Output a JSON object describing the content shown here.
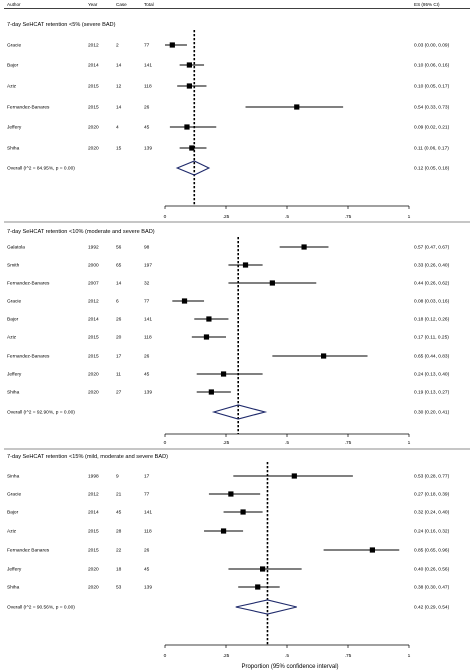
{
  "header": {
    "author": "Author",
    "year": "Year",
    "case": "Case",
    "total": "Total",
    "es": "ES (95% CI)"
  },
  "x_axis_label": "Proportion (95% confidence interval)",
  "chart_data": [
    {
      "type": "forest",
      "title": "7-day SeHCAT retention <5% (severe BAD)",
      "xlim": [
        0,
        1
      ],
      "ticks": [
        {
          "v": 0,
          "label": "0"
        },
        {
          "v": 0.25,
          "label": ".25"
        },
        {
          "v": 0.5,
          "label": ".5"
        },
        {
          "v": 0.75,
          "label": ".75"
        },
        {
          "v": 1,
          "label": "1"
        }
      ],
      "reference_line": 0.12,
      "studies": [
        {
          "author": "Gracie",
          "year": "2012",
          "case": "2",
          "total": "77",
          "es": 0.03,
          "lo": 0.0,
          "hi": 0.09,
          "es_text": "0.03 (0.00, 0.09)"
        },
        {
          "author": "Bajor",
          "year": "2014",
          "case": "14",
          "total": "141",
          "es": 0.1,
          "lo": 0.06,
          "hi": 0.16,
          "es_text": "0.10 (0.06, 0.16)"
        },
        {
          "author": "Aziz",
          "year": "2015",
          "case": "12",
          "total": "118",
          "es": 0.1,
          "lo": 0.05,
          "hi": 0.17,
          "es_text": "0.10 (0.05, 0.17)"
        },
        {
          "author": "Fernandez-Banares",
          "year": "2015",
          "case": "14",
          "total": "26",
          "es": 0.54,
          "lo": 0.33,
          "hi": 0.73,
          "es_text": "0.54 (0.33, 0.73)"
        },
        {
          "author": "Jeffery",
          "year": "2020",
          "case": "4",
          "total": "45",
          "es": 0.09,
          "lo": 0.02,
          "hi": 0.21,
          "es_text": "0.09 (0.02, 0.21)"
        },
        {
          "author": "Shiha",
          "year": "2020",
          "case": "15",
          "total": "139",
          "es": 0.11,
          "lo": 0.06,
          "hi": 0.17,
          "es_text": "0.11 (0.06, 0.17)"
        }
      ],
      "overall": {
        "label": "Overall  (I^2 = 84.95%, p = 0.00)",
        "es": 0.12,
        "lo": 0.05,
        "hi": 0.18,
        "es_text": "0.12 (0.05, 0.18)"
      }
    },
    {
      "type": "forest",
      "title": "7-day SeHCAT retention <10% (moderate and severe BAD)",
      "xlim": [
        0,
        1
      ],
      "ticks": [
        {
          "v": 0,
          "label": "0"
        },
        {
          "v": 0.25,
          "label": ".25"
        },
        {
          "v": 0.5,
          "label": ".5"
        },
        {
          "v": 0.75,
          "label": ".75"
        },
        {
          "v": 1,
          "label": "1"
        }
      ],
      "reference_line": 0.3,
      "studies": [
        {
          "author": "Galatola",
          "year": "1992",
          "case": "56",
          "total": "98",
          "es": 0.57,
          "lo": 0.47,
          "hi": 0.67,
          "es_text": "0.57 (0.47, 0.67)"
        },
        {
          "author": "Smith",
          "year": "2000",
          "case": "65",
          "total": "197",
          "es": 0.33,
          "lo": 0.26,
          "hi": 0.4,
          "es_text": "0.33 (0.26, 0.40)"
        },
        {
          "author": "Fernandez-Banares",
          "year": "2007",
          "case": "14",
          "total": "32",
          "es": 0.44,
          "lo": 0.26,
          "hi": 0.62,
          "es_text": "0.44 (0.26, 0.62)"
        },
        {
          "author": "Gracie",
          "year": "2012",
          "case": "6",
          "total": "77",
          "es": 0.08,
          "lo": 0.03,
          "hi": 0.16,
          "es_text": "0.08 (0.03, 0.16)"
        },
        {
          "author": "Bajor",
          "year": "2014",
          "case": "26",
          "total": "141",
          "es": 0.18,
          "lo": 0.12,
          "hi": 0.26,
          "es_text": "0.18 (0.12, 0.26)"
        },
        {
          "author": "Aziz",
          "year": "2015",
          "case": "20",
          "total": "118",
          "es": 0.17,
          "lo": 0.11,
          "hi": 0.25,
          "es_text": "0.17 (0.11, 0.25)"
        },
        {
          "author": "Fernandez-Banares",
          "year": "2015",
          "case": "17",
          "total": "26",
          "es": 0.65,
          "lo": 0.44,
          "hi": 0.83,
          "es_text": "0.65 (0.44, 0.83)"
        },
        {
          "author": "Jeffery",
          "year": "2020",
          "case": "11",
          "total": "45",
          "es": 0.24,
          "lo": 0.13,
          "hi": 0.4,
          "es_text": "0.24 (0.13, 0.40)"
        },
        {
          "author": "Shiha",
          "year": "2020",
          "case": "27",
          "total": "139",
          "es": 0.19,
          "lo": 0.13,
          "hi": 0.27,
          "es_text": "0.19 (0.13, 0.27)"
        }
      ],
      "overall": {
        "label": "Overall  (I^2 = 92.90%, p = 0.00)",
        "es": 0.3,
        "lo": 0.2,
        "hi": 0.41,
        "es_text": "0.30 (0.20, 0.41)"
      }
    },
    {
      "type": "forest",
      "title": "7-day SeHCAT retention <15% (mild, moderate and severe BAD)",
      "xlim": [
        0,
        1
      ],
      "ticks": [
        {
          "v": 0,
          "label": "0"
        },
        {
          "v": 0.25,
          "label": ".25"
        },
        {
          "v": 0.5,
          "label": ".5"
        },
        {
          "v": 0.75,
          "label": ".75"
        },
        {
          "v": 1,
          "label": "1"
        }
      ],
      "reference_line": 0.42,
      "studies": [
        {
          "author": "Sinha",
          "year": "1998",
          "case": "9",
          "total": "17",
          "es": 0.53,
          "lo": 0.28,
          "hi": 0.77,
          "es_text": "0.53 (0.28, 0.77)"
        },
        {
          "author": "Gracie",
          "year": "2012",
          "case": "21",
          "total": "77",
          "es": 0.27,
          "lo": 0.18,
          "hi": 0.39,
          "es_text": "0.27 (0.18, 0.39)"
        },
        {
          "author": "Bajor",
          "year": "2014",
          "case": "45",
          "total": "141",
          "es": 0.32,
          "lo": 0.24,
          "hi": 0.4,
          "es_text": "0.32 (0.24, 0.40)"
        },
        {
          "author": "Aziz",
          "year": "2015",
          "case": "28",
          "total": "118",
          "es": 0.24,
          "lo": 0.16,
          "hi": 0.32,
          "es_text": "0.24 (0.16, 0.32)"
        },
        {
          "author": "Fernandez Banares",
          "year": "2015",
          "case": "22",
          "total": "26",
          "es": 0.85,
          "lo": 0.65,
          "hi": 0.96,
          "es_text": "0.85 (0.65, 0.96)"
        },
        {
          "author": "Jeffery",
          "year": "2020",
          "case": "18",
          "total": "45",
          "es": 0.4,
          "lo": 0.26,
          "hi": 0.56,
          "es_text": "0.40 (0.26, 0.56)"
        },
        {
          "author": "Shiha",
          "year": "2020",
          "case": "53",
          "total": "139",
          "es": 0.38,
          "lo": 0.3,
          "hi": 0.47,
          "es_text": "0.38 (0.30, 0.47)"
        }
      ],
      "overall": {
        "label": "Overall  (I^2 = 90.56%, p = 0.00)",
        "es": 0.42,
        "lo": 0.29,
        "hi": 0.54,
        "es_text": "0.42 (0.29, 0.54)"
      }
    }
  ],
  "colors": {
    "ink": "#000000",
    "diamond": "#1f2a6b",
    "rule": "#666666"
  }
}
